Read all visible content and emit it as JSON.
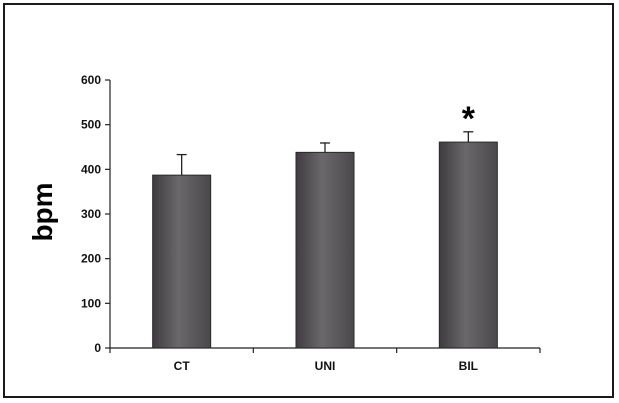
{
  "chart_data": {
    "type": "bar",
    "title": "",
    "xlabel": "",
    "ylabel": "bpm",
    "ylim": [
      0,
      600
    ],
    "yticks": [
      "0",
      "100",
      "200",
      "300",
      "400",
      "500",
      "600"
    ],
    "categories": [
      "CT",
      "UNI",
      "BIL"
    ],
    "values": [
      387,
      438,
      461
    ],
    "error_upper": [
      433,
      459,
      484
    ],
    "annotations": [
      {
        "category": "BIL",
        "text": "*"
      }
    ],
    "grid": false,
    "legend": "none",
    "bar_color": "#5c5a5c"
  }
}
